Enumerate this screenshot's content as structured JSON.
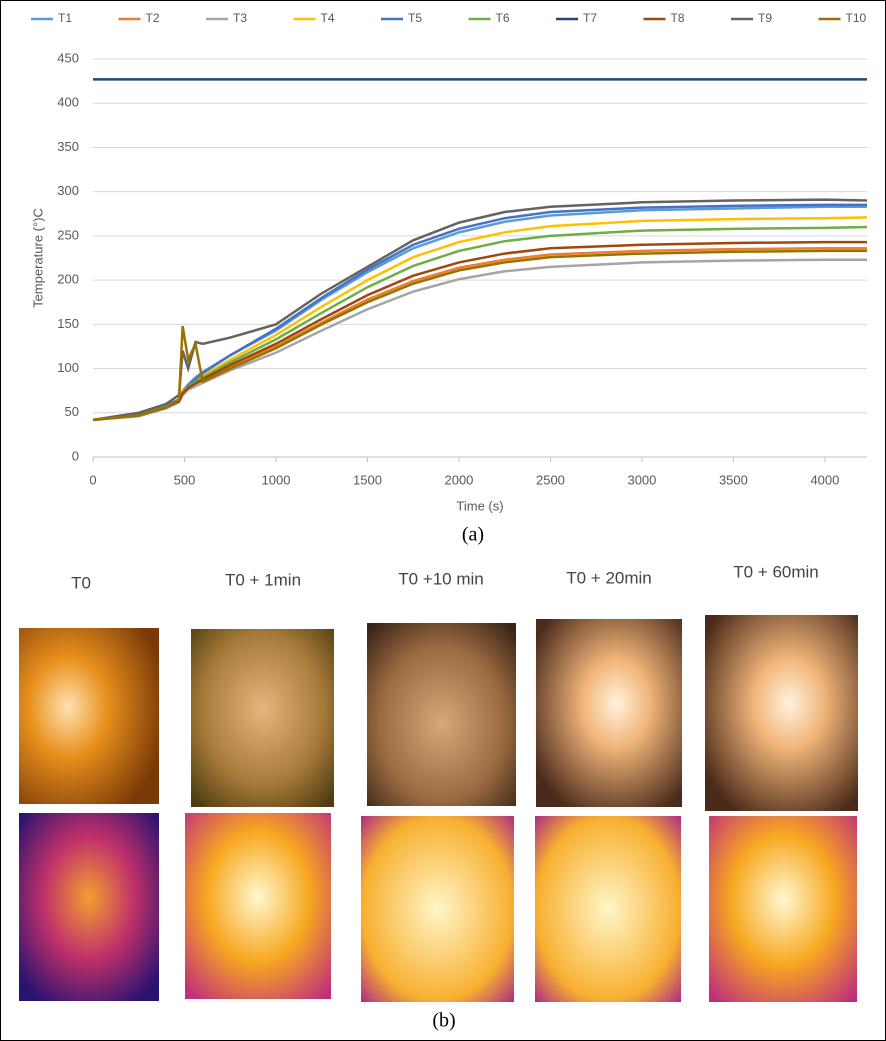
{
  "chart_data": {
    "type": "line",
    "x_label": "Time (s)",
    "y_label": "Temperature (°)C",
    "x": [
      0,
      250,
      400,
      470,
      490,
      520,
      560,
      600,
      750,
      1000,
      1250,
      1500,
      1750,
      2000,
      2250,
      2500,
      3000,
      3500,
      4000,
      4230
    ],
    "xlim": [
      0,
      4230
    ],
    "ylim": [
      0,
      450
    ],
    "xticks": [
      0,
      500,
      1000,
      1500,
      2000,
      2500,
      3000,
      3500,
      4000
    ],
    "yticks": [
      0,
      50,
      100,
      150,
      200,
      250,
      300,
      350,
      400,
      450
    ],
    "grid": true,
    "legend": "top",
    "series": [
      {
        "name": "T1",
        "color": "#5b9bd5",
        "values": [
          42,
          48,
          58,
          65,
          75,
          82,
          90,
          96,
          115,
          143,
          178,
          209,
          236,
          254,
          266,
          273,
          279,
          281,
          283,
          283
        ]
      },
      {
        "name": "T2",
        "color": "#ed7d31",
        "values": [
          42,
          47,
          56,
          63,
          72,
          78,
          82,
          87,
          102,
          125,
          152,
          178,
          199,
          214,
          223,
          229,
          233,
          235,
          236,
          236
        ]
      },
      {
        "name": "T3",
        "color": "#a5a5a5",
        "values": [
          42,
          46,
          55,
          62,
          70,
          76,
          80,
          84,
          98,
          118,
          143,
          167,
          187,
          201,
          210,
          215,
          220,
          222,
          223,
          223
        ]
      },
      {
        "name": "T4",
        "color": "#ffc000",
        "values": [
          42,
          48,
          57,
          64,
          74,
          80,
          86,
          92,
          110,
          138,
          170,
          200,
          226,
          243,
          254,
          261,
          267,
          269,
          270,
          271
        ]
      },
      {
        "name": "T5",
        "color": "#4472c4",
        "values": [
          42,
          48,
          58,
          65,
          72,
          80,
          88,
          95,
          115,
          145,
          180,
          212,
          240,
          258,
          270,
          277,
          282,
          284,
          285,
          285
        ]
      },
      {
        "name": "T6",
        "color": "#70ad47",
        "values": [
          42,
          48,
          57,
          64,
          73,
          79,
          85,
          90,
          107,
          133,
          163,
          192,
          216,
          233,
          244,
          250,
          256,
          258,
          259,
          260
        ]
      },
      {
        "name": "T7",
        "color": "#264478",
        "values": [
          427,
          427,
          427,
          427,
          427,
          427,
          427,
          427,
          427,
          427,
          427,
          427,
          427,
          427,
          427,
          427,
          427,
          427,
          427,
          427
        ]
      },
      {
        "name": "T8",
        "color": "#9e480e",
        "values": [
          42,
          47,
          56,
          63,
          72,
          78,
          83,
          88,
          104,
          128,
          156,
          183,
          205,
          220,
          230,
          236,
          240,
          242,
          243,
          243
        ]
      },
      {
        "name": "T9",
        "color": "#636363",
        "values": [
          42,
          50,
          60,
          70,
          120,
          100,
          130,
          128,
          135,
          150,
          185,
          215,
          245,
          265,
          277,
          283,
          288,
          290,
          291,
          290
        ]
      },
      {
        "name": "T10",
        "color": "#997300",
        "values": [
          42,
          47,
          56,
          65,
          148,
          110,
          128,
          85,
          100,
          123,
          150,
          175,
          196,
          211,
          220,
          226,
          230,
          232,
          233,
          233
        ]
      }
    ]
  },
  "panel_a_label": "(a)",
  "panel_b": {
    "label": "(b)",
    "columns": [
      "T0",
      "T0 + 1min",
      "T0 +10 min",
      "T0 + 20min",
      "T0 + 60min"
    ]
  }
}
